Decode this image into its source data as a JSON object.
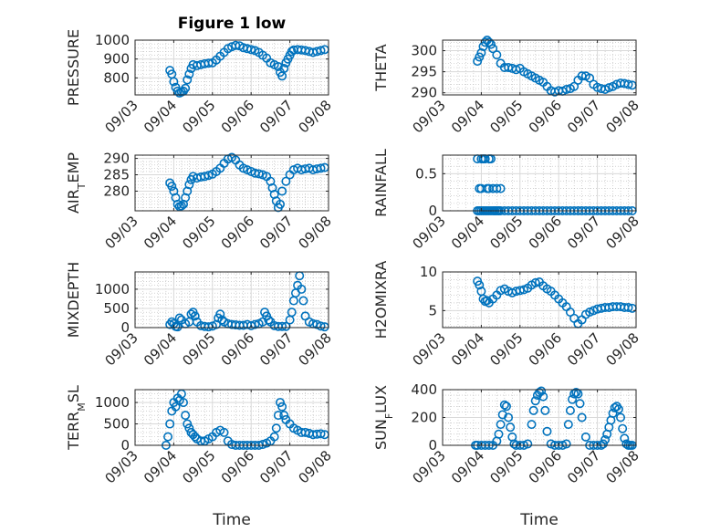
{
  "figure_title": "Figure 1 low",
  "colors": {
    "marker": "#0072bd",
    "axis": "#262626"
  },
  "chart_data": [
    {
      "type": "scatter",
      "ylabel": "PRESSURE",
      "xlabel": "",
      "xlim": [
        "09/03",
        "09/08"
      ],
      "ylim": [
        710,
        1000
      ],
      "yticks": [
        "800",
        "900",
        "1000"
      ],
      "xticks": [
        "09/03",
        "09/04",
        "09/05",
        "09/06",
        "09/07",
        "09/08"
      ],
      "grid": true,
      "x": [
        0.9,
        0.95,
        1.0,
        1.05,
        1.1,
        1.15,
        1.2,
        1.25,
        1.3,
        1.35,
        1.4,
        1.45,
        1.5,
        1.6,
        1.7,
        1.8,
        1.9,
        2.0,
        2.1,
        2.2,
        2.3,
        2.4,
        2.5,
        2.6,
        2.7,
        2.8,
        2.9,
        3.0,
        3.1,
        3.2,
        3.3,
        3.4,
        3.5,
        3.6,
        3.7,
        3.75,
        3.8,
        3.85,
        3.9,
        3.95,
        4.0,
        4.05,
        4.1,
        4.2,
        4.3,
        4.4,
        4.5,
        4.6,
        4.7,
        4.8,
        4.9
      ],
      "y": [
        840,
        820,
        780,
        750,
        730,
        720,
        725,
        730,
        745,
        790,
        820,
        850,
        870,
        865,
        870,
        875,
        878,
        880,
        895,
        915,
        935,
        955,
        965,
        972,
        970,
        960,
        955,
        950,
        945,
        935,
        920,
        905,
        880,
        870,
        860,
        830,
        810,
        850,
        880,
        900,
        920,
        940,
        948,
        950,
        948,
        945,
        940,
        935,
        940,
        945,
        950
      ]
    },
    {
      "type": "scatter",
      "ylabel": "THETA",
      "xlabel": "",
      "xlim": [
        "09/03",
        "09/08"
      ],
      "ylim": [
        289.5,
        302.5
      ],
      "yticks": [
        "290",
        "295",
        "300"
      ],
      "xticks": [
        "09/03",
        "09/04",
        "09/05",
        "09/06",
        "09/07",
        "09/08"
      ],
      "grid": true,
      "x": [
        0.9,
        0.95,
        1.0,
        1.05,
        1.1,
        1.15,
        1.2,
        1.25,
        1.3,
        1.4,
        1.5,
        1.6,
        1.7,
        1.8,
        1.9,
        2.0,
        2.1,
        2.2,
        2.3,
        2.4,
        2.5,
        2.6,
        2.7,
        2.8,
        2.9,
        3.0,
        3.1,
        3.2,
        3.3,
        3.4,
        3.5,
        3.6,
        3.7,
        3.8,
        3.9,
        4.0,
        4.1,
        4.2,
        4.3,
        4.4,
        4.5,
        4.6,
        4.7,
        4.8,
        4.9
      ],
      "y": [
        297.5,
        298.5,
        299.5,
        301,
        302,
        302.5,
        302,
        301.5,
        300.5,
        299,
        297,
        296,
        296,
        295.8,
        295.5,
        295.8,
        295,
        294.5,
        294,
        293.5,
        293,
        292.5,
        291.5,
        290.5,
        290.2,
        290.5,
        290.4,
        290.8,
        291,
        291.5,
        293,
        294,
        294,
        293.5,
        292,
        291.3,
        291,
        290.8,
        291.2,
        291.5,
        292,
        292.3,
        292.2,
        292,
        291.8
      ]
    },
    {
      "type": "scatter",
      "ylabel": "AIR_TEMP",
      "xlabel": "",
      "xlim": [
        "09/03",
        "09/08"
      ],
      "ylim": [
        274,
        291
      ],
      "yticks": [
        "280",
        "285",
        "290"
      ],
      "xticks": [
        "09/03",
        "09/04",
        "09/05",
        "09/06",
        "09/07",
        "09/08"
      ],
      "grid": true,
      "x": [
        0.9,
        0.95,
        1.0,
        1.05,
        1.1,
        1.15,
        1.2,
        1.25,
        1.3,
        1.35,
        1.4,
        1.45,
        1.5,
        1.6,
        1.7,
        1.8,
        1.9,
        2.0,
        2.1,
        2.2,
        2.3,
        2.4,
        2.5,
        2.6,
        2.7,
        2.8,
        2.9,
        3.0,
        3.1,
        3.2,
        3.3,
        3.4,
        3.5,
        3.55,
        3.6,
        3.65,
        3.7,
        3.75,
        3.8,
        3.9,
        4.0,
        4.1,
        4.2,
        4.3,
        4.4,
        4.5,
        4.6,
        4.7,
        4.8,
        4.9
      ],
      "y": [
        282.5,
        281.5,
        280,
        278,
        276,
        275.3,
        275.5,
        276,
        278,
        280,
        282,
        283.5,
        284.5,
        284,
        284.3,
        284.5,
        284.8,
        285.2,
        286,
        287,
        288.5,
        289.8,
        290.3,
        289.5,
        288,
        287,
        286.5,
        286,
        285.5,
        285.3,
        285,
        284.5,
        283,
        281,
        279,
        277,
        275,
        276,
        280,
        283,
        285,
        286.5,
        287,
        286.5,
        286.8,
        287,
        286.5,
        286.8,
        287,
        287.2
      ]
    },
    {
      "type": "scatter",
      "ylabel": "RAINFALL",
      "xlabel": "",
      "xlim": [
        "09/03",
        "09/08"
      ],
      "ylim": [
        0,
        0.75
      ],
      "yticks": [
        "0",
        "0.5"
      ],
      "xticks": [
        "09/03",
        "09/04",
        "09/05",
        "09/06",
        "09/07",
        "09/08"
      ],
      "grid": true,
      "x": [
        0.9,
        0.95,
        1.0,
        1.05,
        1.1,
        1.15,
        1.2,
        1.25,
        1.3,
        1.35,
        1.4,
        1.45,
        1.5,
        0.95,
        1.0,
        1.15,
        1.2,
        1.3,
        1.4,
        1.5,
        0.9,
        1.0,
        1.05,
        1.1,
        1.2,
        1.25,
        1.35,
        1.45,
        1.6,
        1.7,
        1.8,
        1.9,
        2.0,
        2.1,
        2.2,
        2.3,
        2.4,
        2.5,
        2.6,
        2.7,
        2.8,
        2.9,
        3.0,
        3.1,
        3.2,
        3.3,
        3.4,
        3.5,
        3.6,
        3.7,
        3.8,
        3.9,
        4.0,
        4.1,
        4.2,
        4.3,
        4.4,
        4.5,
        4.6,
        4.7,
        4.8,
        4.9
      ],
      "y": [
        0,
        0,
        0,
        0,
        0,
        0,
        0,
        0,
        0,
        0,
        0,
        0,
        0,
        0.3,
        0.3,
        0.3,
        0.3,
        0.3,
        0.3,
        0.3,
        0.7,
        0.7,
        0.7,
        0.7,
        0.7,
        0.7,
        0,
        0,
        0,
        0,
        0,
        0,
        0,
        0,
        0,
        0,
        0,
        0,
        0,
        0,
        0,
        0,
        0,
        0,
        0,
        0,
        0,
        0,
        0,
        0,
        0,
        0,
        0,
        0,
        0,
        0,
        0,
        0,
        0,
        0,
        0,
        0
      ]
    },
    {
      "type": "scatter",
      "ylabel": "MIXDEPTH",
      "xlabel": "",
      "xlim": [
        "09/03",
        "09/08"
      ],
      "ylim": [
        0,
        1450
      ],
      "yticks": [
        "0",
        "500",
        "1000"
      ],
      "xticks": [
        "09/03",
        "09/04",
        "09/05",
        "09/06",
        "09/07",
        "09/08"
      ],
      "grid": true,
      "x": [
        0.9,
        0.95,
        1.0,
        1.05,
        1.1,
        1.15,
        1.2,
        1.3,
        1.4,
        1.45,
        1.5,
        1.55,
        1.6,
        1.7,
        1.8,
        1.9,
        2.0,
        2.1,
        2.15,
        2.2,
        2.25,
        2.3,
        2.4,
        2.5,
        2.6,
        2.7,
        2.8,
        2.9,
        3.0,
        3.1,
        3.2,
        3.3,
        3.35,
        3.4,
        3.45,
        3.5,
        3.6,
        3.7,
        3.8,
        3.9,
        4.0,
        4.05,
        4.1,
        4.15,
        4.2,
        4.25,
        4.3,
        4.35,
        4.4,
        4.5,
        4.6,
        4.7,
        4.8,
        4.9
      ],
      "y": [
        80,
        150,
        100,
        30,
        20,
        250,
        200,
        100,
        150,
        350,
        400,
        300,
        150,
        50,
        30,
        20,
        40,
        80,
        250,
        350,
        200,
        150,
        100,
        80,
        70,
        60,
        60,
        80,
        50,
        80,
        100,
        150,
        400,
        300,
        200,
        150,
        50,
        30,
        30,
        30,
        200,
        400,
        700,
        900,
        1100,
        1350,
        1000,
        700,
        300,
        150,
        100,
        80,
        40,
        20
      ]
    },
    {
      "type": "scatter",
      "ylabel": "H2OMIXRA",
      "xlabel": "",
      "xlim": [
        "09/03",
        "09/08"
      ],
      "ylim": [
        2.8,
        10
      ],
      "yticks": [
        "5",
        "10"
      ],
      "xticks": [
        "09/03",
        "09/04",
        "09/05",
        "09/06",
        "09/07",
        "09/08"
      ],
      "grid": true,
      "x": [
        0.9,
        0.95,
        1.0,
        1.05,
        1.1,
        1.15,
        1.2,
        1.3,
        1.4,
        1.5,
        1.6,
        1.7,
        1.8,
        1.9,
        2.0,
        2.1,
        2.2,
        2.3,
        2.4,
        2.5,
        2.6,
        2.7,
        2.8,
        2.9,
        3.0,
        3.1,
        3.2,
        3.3,
        3.4,
        3.5,
        3.6,
        3.7,
        3.8,
        3.9,
        4.0,
        4.1,
        4.2,
        4.3,
        4.4,
        4.5,
        4.6,
        4.7,
        4.8,
        4.9
      ],
      "y": [
        8.8,
        8.3,
        7.5,
        6.5,
        6.2,
        6.3,
        6.0,
        6.5,
        7.0,
        7.6,
        7.8,
        7.5,
        7.3,
        7.5,
        7.6,
        7.7,
        7.9,
        8.3,
        8.6,
        8.7,
        8.2,
        7.8,
        7.5,
        7.0,
        6.5,
        6.0,
        5.5,
        4.8,
        4.0,
        3.3,
        3.8,
        4.5,
        4.8,
        5.0,
        5.2,
        5.3,
        5.4,
        5.4,
        5.5,
        5.5,
        5.5,
        5.4,
        5.4,
        5.3
      ]
    },
    {
      "type": "scatter",
      "ylabel": "TERR_MSL",
      "xlabel": "Time",
      "xlim": [
        "09/03",
        "09/08"
      ],
      "ylim": [
        0,
        1300
      ],
      "yticks": [
        "0",
        "500",
        "1000"
      ],
      "xticks": [
        "09/03",
        "09/04",
        "09/05",
        "09/06",
        "09/07",
        "09/08"
      ],
      "grid": true,
      "x": [
        0.8,
        0.85,
        0.9,
        0.95,
        1.0,
        1.05,
        1.1,
        1.15,
        1.2,
        1.25,
        1.3,
        1.35,
        1.4,
        1.45,
        1.5,
        1.55,
        1.6,
        1.7,
        1.8,
        1.9,
        2.0,
        2.1,
        2.2,
        2.3,
        2.4,
        2.5,
        2.6,
        2.7,
        2.8,
        2.9,
        3.0,
        3.1,
        3.2,
        3.3,
        3.4,
        3.5,
        3.6,
        3.65,
        3.7,
        3.75,
        3.8,
        3.85,
        3.9,
        4.0,
        4.1,
        4.2,
        4.3,
        4.4,
        4.5,
        4.6,
        4.7,
        4.8,
        4.9
      ],
      "y": [
        0,
        200,
        500,
        800,
        1000,
        900,
        1100,
        1050,
        1200,
        1000,
        700,
        500,
        400,
        300,
        250,
        200,
        150,
        100,
        100,
        150,
        200,
        300,
        350,
        300,
        100,
        20,
        0,
        0,
        0,
        0,
        0,
        0,
        0,
        20,
        50,
        100,
        200,
        400,
        700,
        1000,
        900,
        700,
        600,
        500,
        400,
        350,
        300,
        300,
        280,
        250,
        260,
        270,
        250
      ]
    },
    {
      "type": "scatter",
      "ylabel": "SUN_FLUX",
      "xlabel": "Time",
      "xlim": [
        "09/03",
        "09/08"
      ],
      "ylim": [
        0,
        400
      ],
      "yticks": [
        "0",
        "200",
        "400"
      ],
      "xticks": [
        "09/03",
        "09/04",
        "09/05",
        "09/06",
        "09/07",
        "09/08"
      ],
      "grid": true,
      "x": [
        0.85,
        0.9,
        1.0,
        1.1,
        1.2,
        1.3,
        1.4,
        1.45,
        1.5,
        1.55,
        1.6,
        1.65,
        1.7,
        1.75,
        1.8,
        1.85,
        1.9,
        2.0,
        2.1,
        2.2,
        2.3,
        2.35,
        2.4,
        2.45,
        2.5,
        2.55,
        2.6,
        2.65,
        2.7,
        2.8,
        2.9,
        3.0,
        3.1,
        3.2,
        3.25,
        3.3,
        3.35,
        3.4,
        3.45,
        3.5,
        3.55,
        3.6,
        3.7,
        3.8,
        3.9,
        4.0,
        4.1,
        4.15,
        4.2,
        4.25,
        4.3,
        4.35,
        4.4,
        4.45,
        4.5,
        4.55,
        4.6,
        4.65,
        4.7,
        4.75,
        4.8,
        4.85,
        4.9
      ],
      "y": [
        0,
        0,
        0,
        0,
        0,
        0,
        30,
        80,
        150,
        220,
        290,
        280,
        200,
        130,
        60,
        10,
        0,
        0,
        0,
        10,
        150,
        250,
        320,
        360,
        380,
        390,
        350,
        250,
        100,
        10,
        0,
        0,
        0,
        10,
        150,
        250,
        330,
        370,
        380,
        370,
        300,
        200,
        60,
        0,
        0,
        0,
        0,
        10,
        40,
        80,
        130,
        180,
        230,
        270,
        280,
        260,
        200,
        120,
        50,
        10,
        0,
        0,
        0
      ]
    }
  ]
}
